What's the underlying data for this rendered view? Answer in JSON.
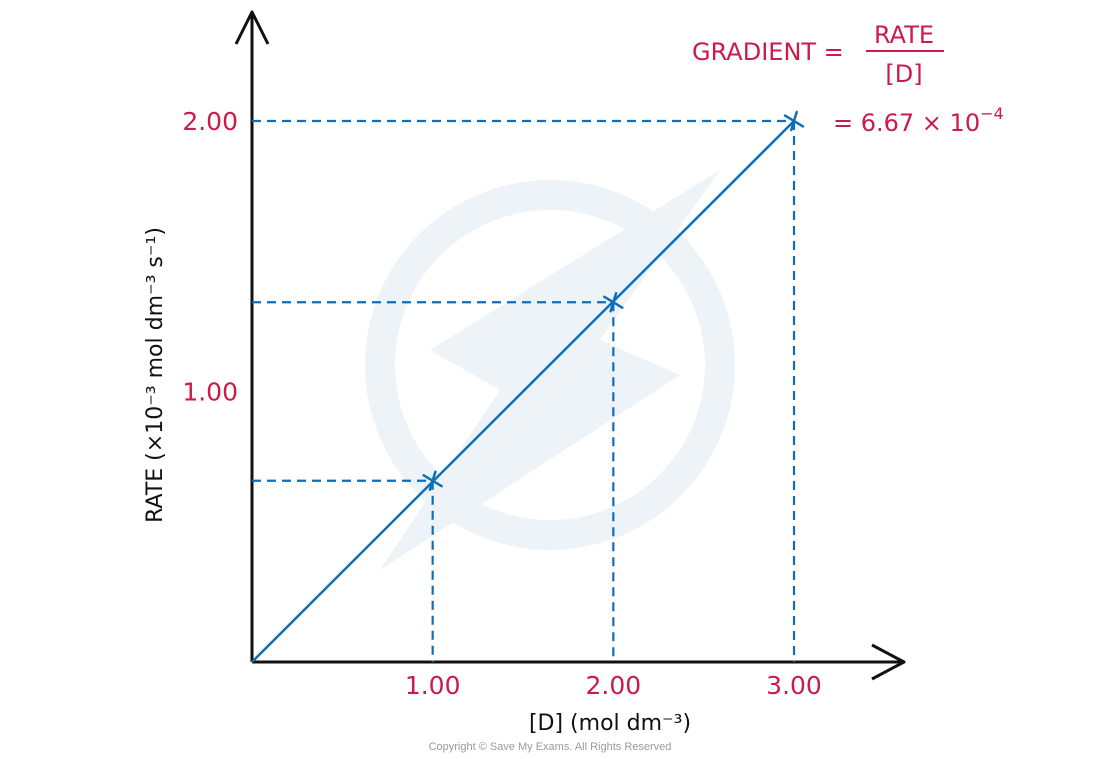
{
  "chart_data": {
    "type": "line",
    "xlabel": "[D] (mol dm⁻³)",
    "ylabel": "RATE  (×10⁻³ mol dm⁻³ s⁻¹)",
    "xlim": [
      0,
      3.6
    ],
    "ylim": [
      0,
      2.5
    ],
    "x_ticks": [
      {
        "value": 1,
        "label": "1.00"
      },
      {
        "value": 2,
        "label": "2.00"
      },
      {
        "value": 3,
        "label": "3.00"
      }
    ],
    "y_ticks": [
      {
        "value": 1,
        "label": "1.00"
      },
      {
        "value": 2,
        "label": "2.00"
      }
    ],
    "series": [
      {
        "line_from": [
          0,
          0
        ],
        "points": [
          {
            "x": 1,
            "y": 0.67
          },
          {
            "x": 2,
            "y": 1.33
          },
          {
            "x": 3,
            "y": 2.0
          }
        ]
      }
    ],
    "annotation": {
      "gradient_label": "GRADIENT =",
      "numerator": "RATE",
      "denominator": "[D]",
      "value_prefix": "= 6.67 × 10",
      "value_exponent": "−4"
    },
    "grid": false,
    "guide_lines": "dashed"
  },
  "colors": {
    "line": "#0e6fb8",
    "label": "#cc1a4a",
    "axis": "#111111",
    "watermark": "#eef3f8"
  },
  "footer": {
    "copyright": "Copyright © Save My Exams. All Rights Reserved"
  }
}
